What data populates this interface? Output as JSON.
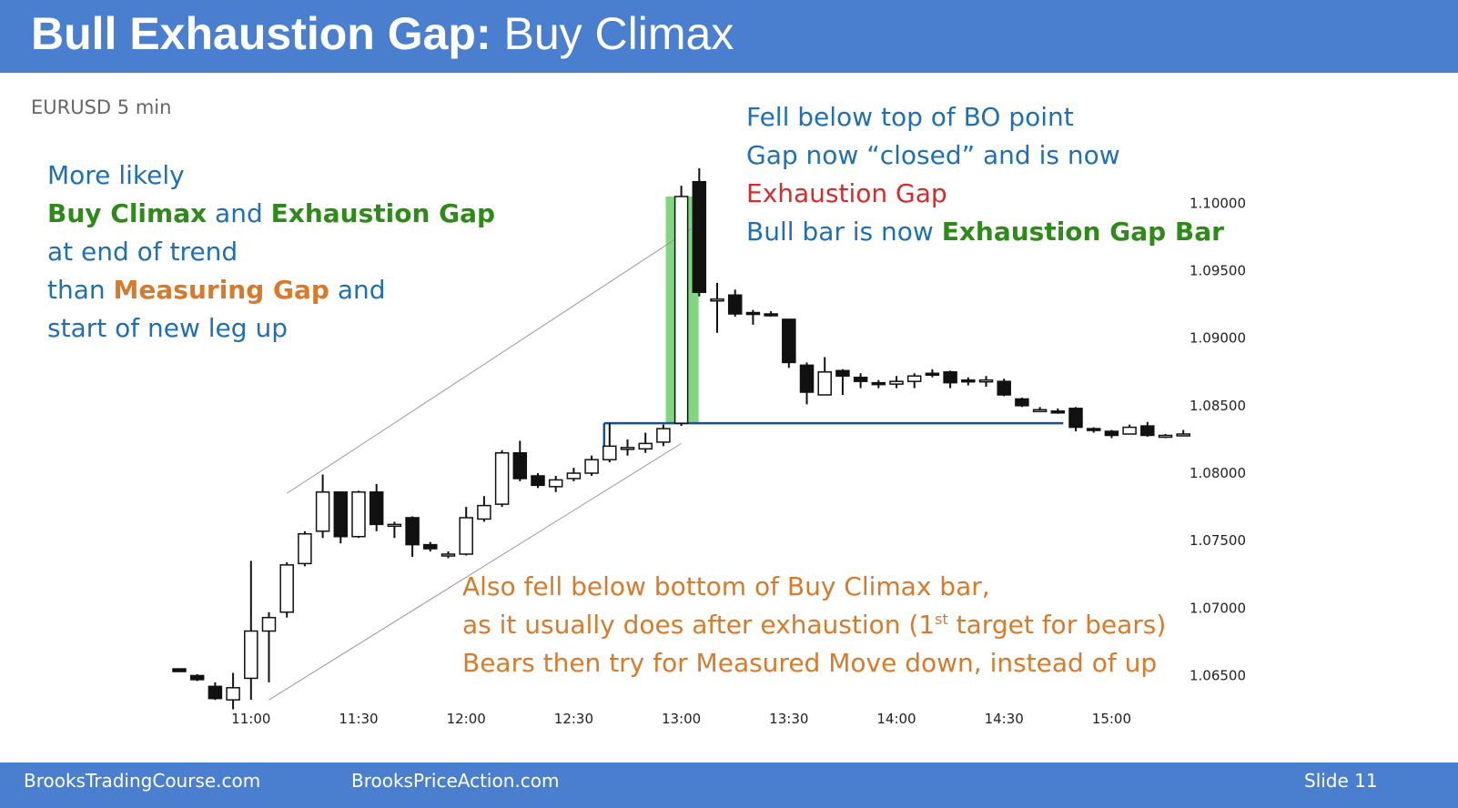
{
  "header": {
    "title_bold": "Bull Exhaustion Gap:",
    "title_rest": " Buy Climax"
  },
  "subtitle": "EURUSD 5 min",
  "left_note": {
    "line1": "More likely",
    "line2_a": "Buy Climax",
    "line2_b": " and ",
    "line2_c": "Exhaustion Gap",
    "line3": "at end of trend",
    "line4_a": "than ",
    "line4_b": "Measuring Gap",
    "line4_c": " and",
    "line5": "start of new leg up"
  },
  "right_note": {
    "line1": "Fell below top of BO point",
    "line2": "Gap now “closed” and is now",
    "line3": "Exhaustion Gap",
    "line4_a": "Bull bar is now ",
    "line4_b": "Exhaustion Gap Bar"
  },
  "bottom_note": {
    "line1": "Also fell below bottom of Buy Climax bar,",
    "line2_a": "as it usually does after exhaustion (1",
    "line2_sup": "st",
    "line2_b": " target for bears)",
    "line3": "Bears then try for Measured Move down, instead of up"
  },
  "footer": {
    "left": "BrooksTradingCourse.com",
    "center": "BrooksPriceAction.com",
    "slide": "Slide  11"
  },
  "colors": {
    "header_bg": "#4a7fd0",
    "text_blue": "#1f6fb5",
    "text_green": "#2e8b1a",
    "text_orange": "#d97a2b",
    "text_red": "#d62b2b",
    "highlight_green": "#4cc44c",
    "breakout_line": "#1f4e8c"
  },
  "chart_data": {
    "type": "candlestick",
    "symbol": "EURUSD",
    "timeframe": "5 min",
    "x_tick_labels": [
      "11:00",
      "11:30",
      "12:00",
      "12:30",
      "13:00",
      "13:30",
      "14:00",
      "14:30",
      "15:00"
    ],
    "x_tick_bar_index": [
      4,
      10,
      16,
      22,
      28,
      34,
      40,
      46,
      52
    ],
    "y_tick_labels": [
      "1.10000",
      "1.09500",
      "1.09000",
      "1.08500",
      "1.08000",
      "1.07500",
      "1.07000",
      "1.06500"
    ],
    "ylim": [
      1.0622,
      1.1036
    ],
    "grid": false,
    "highlighted_bar_index": 28,
    "breakout_level": 1.0837,
    "breakout_line_bar_range": [
      24,
      49
    ],
    "channel_lines": [
      {
        "name": "upper",
        "from": {
          "bar": 6,
          "price": 1.0785
        },
        "to": {
          "bar": 29,
          "price": 1.0985
        }
      },
      {
        "name": "lower",
        "from": {
          "bar": 5,
          "price": 1.0632
        },
        "to": {
          "bar": 28,
          "price": 1.0822
        }
      }
    ],
    "bars": [
      {
        "o": 1.0655,
        "h": 1.0655,
        "l": 1.0653,
        "c": 1.0653
      },
      {
        "o": 1.065,
        "h": 1.0651,
        "l": 1.0646,
        "c": 1.0647
      },
      {
        "o": 1.0642,
        "h": 1.0645,
        "l": 1.0632,
        "c": 1.0633
      },
      {
        "o": 1.0632,
        "h": 1.0652,
        "l": 1.0625,
        "c": 1.0641
      },
      {
        "o": 1.0648,
        "h": 1.0735,
        "l": 1.0632,
        "c": 1.0683
      },
      {
        "o": 1.0683,
        "h": 1.0697,
        "l": 1.0645,
        "c": 1.0693
      },
      {
        "o": 1.0697,
        "h": 1.0734,
        "l": 1.0693,
        "c": 1.0732
      },
      {
        "o": 1.0733,
        "h": 1.0757,
        "l": 1.0731,
        "c": 1.0755
      },
      {
        "o": 1.0757,
        "h": 1.0799,
        "l": 1.0752,
        "c": 1.0786
      },
      {
        "o": 1.0786,
        "h": 1.0786,
        "l": 1.0748,
        "c": 1.0753
      },
      {
        "o": 1.0753,
        "h": 1.0787,
        "l": 1.0752,
        "c": 1.0786
      },
      {
        "o": 1.0786,
        "h": 1.0792,
        "l": 1.0757,
        "c": 1.0762
      },
      {
        "o": 1.0762,
        "h": 1.0764,
        "l": 1.0752,
        "c": 1.0762
      },
      {
        "o": 1.0767,
        "h": 1.0768,
        "l": 1.0738,
        "c": 1.0747
      },
      {
        "o": 1.0747,
        "h": 1.0749,
        "l": 1.0742,
        "c": 1.0744
      },
      {
        "o": 1.074,
        "h": 1.0742,
        "l": 1.0737,
        "c": 1.074
      },
      {
        "o": 1.074,
        "h": 1.0775,
        "l": 1.0739,
        "c": 1.0767
      },
      {
        "o": 1.0766,
        "h": 1.0783,
        "l": 1.0764,
        "c": 1.0776
      },
      {
        "o": 1.0777,
        "h": 1.0817,
        "l": 1.0775,
        "c": 1.0815
      },
      {
        "o": 1.0815,
        "h": 1.0824,
        "l": 1.0794,
        "c": 1.0796
      },
      {
        "o": 1.0798,
        "h": 1.08,
        "l": 1.0789,
        "c": 1.0791
      },
      {
        "o": 1.079,
        "h": 1.0798,
        "l": 1.0786,
        "c": 1.0795
      },
      {
        "o": 1.0796,
        "h": 1.0804,
        "l": 1.0794,
        "c": 1.08
      },
      {
        "o": 1.08,
        "h": 1.0813,
        "l": 1.0798,
        "c": 1.081
      },
      {
        "o": 1.081,
        "h": 1.0837,
        "l": 1.0808,
        "c": 1.082
      },
      {
        "o": 1.0818,
        "h": 1.0825,
        "l": 1.0813,
        "c": 1.0819
      },
      {
        "o": 1.0818,
        "h": 1.083,
        "l": 1.0815,
        "c": 1.0822
      },
      {
        "o": 1.0823,
        "h": 1.0836,
        "l": 1.082,
        "c": 1.0833
      },
      {
        "o": 1.0837,
        "h": 1.1013,
        "l": 1.0835,
        "c": 1.1005
      },
      {
        "o": 1.1016,
        "h": 1.1026,
        "l": 1.0931,
        "c": 1.0934
      },
      {
        "o": 1.0929,
        "h": 1.0941,
        "l": 1.0904,
        "c": 1.0929
      },
      {
        "o": 1.0932,
        "h": 1.0936,
        "l": 1.0916,
        "c": 1.0918
      },
      {
        "o": 1.0919,
        "h": 1.0921,
        "l": 1.091,
        "c": 1.0918
      },
      {
        "o": 1.0918,
        "h": 1.092,
        "l": 1.0916,
        "c": 1.0917
      },
      {
        "o": 1.0914,
        "h": 1.0914,
        "l": 1.0878,
        "c": 1.0882
      },
      {
        "o": 1.088,
        "h": 1.0882,
        "l": 1.0851,
        "c": 1.086
      },
      {
        "o": 1.0858,
        "h": 1.0886,
        "l": 1.0858,
        "c": 1.0875
      },
      {
        "o": 1.0876,
        "h": 1.0877,
        "l": 1.0858,
        "c": 1.0872
      },
      {
        "o": 1.0871,
        "h": 1.0874,
        "l": 1.0863,
        "c": 1.0868
      },
      {
        "o": 1.0867,
        "h": 1.0869,
        "l": 1.0863,
        "c": 1.0866
      },
      {
        "o": 1.0866,
        "h": 1.0872,
        "l": 1.0863,
        "c": 1.0868
      },
      {
        "o": 1.0868,
        "h": 1.0874,
        "l": 1.0863,
        "c": 1.0872
      },
      {
        "o": 1.0874,
        "h": 1.0877,
        "l": 1.0871,
        "c": 1.0873
      },
      {
        "o": 1.0875,
        "h": 1.0876,
        "l": 1.0863,
        "c": 1.0867
      },
      {
        "o": 1.0869,
        "h": 1.0871,
        "l": 1.0865,
        "c": 1.0868
      },
      {
        "o": 1.0869,
        "h": 1.0872,
        "l": 1.0864,
        "c": 1.0869
      },
      {
        "o": 1.0868,
        "h": 1.087,
        "l": 1.0857,
        "c": 1.0858
      },
      {
        "o": 1.0855,
        "h": 1.0856,
        "l": 1.0849,
        "c": 1.085
      },
      {
        "o": 1.0847,
        "h": 1.0849,
        "l": 1.0846,
        "c": 1.0847
      },
      {
        "o": 1.0846,
        "h": 1.0848,
        "l": 1.0844,
        "c": 1.0845
      },
      {
        "o": 1.0848,
        "h": 1.0849,
        "l": 1.0831,
        "c": 1.0834
      },
      {
        "o": 1.0833,
        "h": 1.0834,
        "l": 1.083,
        "c": 1.0832
      },
      {
        "o": 1.0831,
        "h": 1.0832,
        "l": 1.0826,
        "c": 1.0828
      },
      {
        "o": 1.0829,
        "h": 1.0836,
        "l": 1.0829,
        "c": 1.0834
      },
      {
        "o": 1.0835,
        "h": 1.0838,
        "l": 1.0827,
        "c": 1.0828
      },
      {
        "o": 1.0828,
        "h": 1.0829,
        "l": 1.0826,
        "c": 1.0828
      },
      {
        "o": 1.0828,
        "h": 1.0832,
        "l": 1.0828,
        "c": 1.0829
      }
    ]
  }
}
